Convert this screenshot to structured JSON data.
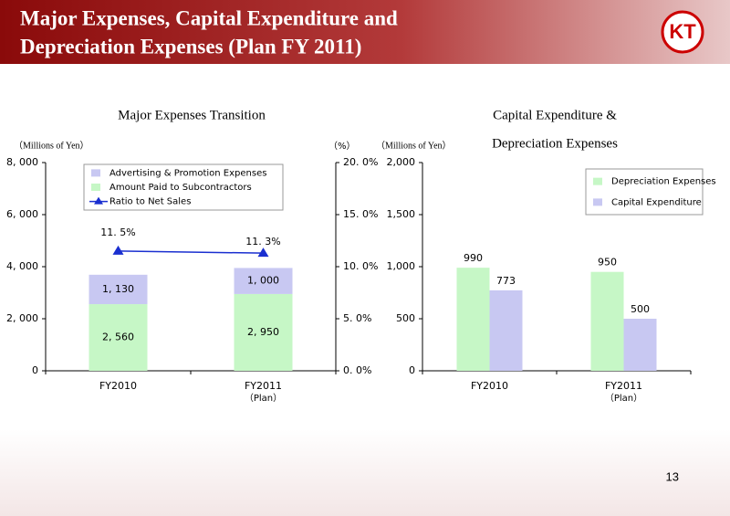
{
  "title": [
    "Major Expenses, Capital Expenditure and",
    "Depreciation Expenses (Plan FY 2011)"
  ],
  "logo": "KT",
  "page_number": "13",
  "chart_data": [
    {
      "type": "bar",
      "stacked": true,
      "title": [
        "Major Expenses Transition"
      ],
      "y_label": "（Millions of Yen）",
      "y2_label": "（%）",
      "categories": [
        "FY2010",
        "FY2011"
      ],
      "category_notes": [
        null,
        "（Plan）"
      ],
      "ylim": [
        0,
        8000
      ],
      "yticks": [
        0,
        {
          "value": 2000,
          "label": "2, 000"
        },
        {
          "value": 4000,
          "label": "4, 000"
        },
        {
          "value": 6000,
          "label": "6, 000"
        },
        {
          "value": 8000,
          "label": "8, 000"
        }
      ],
      "y2lim": [
        0,
        20
      ],
      "y2ticks": [
        {
          "value": 0,
          "label": "0. 0%"
        },
        {
          "value": 5,
          "label": "5. 0%"
        },
        {
          "value": 10,
          "label": "10. 0%"
        },
        {
          "value": 15,
          "label": "15. 0%"
        },
        {
          "value": 20,
          "label": "20. 0%"
        }
      ],
      "legend": "top-left",
      "series": [
        {
          "name": "Advertising & Promotion Expenses",
          "color": "#c8c8f2",
          "values": [
            1130,
            1000
          ],
          "value_labels": [
            "1, 130",
            "1, 000"
          ]
        },
        {
          "name": "Amount Paid to Subcontractors",
          "color": "#c6f7c6",
          "values": [
            2560,
            2950
          ],
          "value_labels": [
            "2, 560",
            "2, 950"
          ]
        },
        {
          "name": "Ratio to Net Sales",
          "color": "#1a2fd0",
          "axis": "y2",
          "values": [
            11.5,
            11.3
          ],
          "value_labels": [
            "11. 5%",
            "11. 3%"
          ]
        }
      ]
    },
    {
      "type": "bar",
      "stacked": false,
      "title": [
        "Capital Expenditure &",
        "Depreciation Expenses"
      ],
      "y_label": "（Millions of Yen）",
      "categories": [
        "FY2010",
        "FY2011"
      ],
      "category_notes": [
        null,
        "（Plan）"
      ],
      "ylim": [
        0,
        2000
      ],
      "yticks": [
        0,
        500,
        {
          "value": 1000,
          "label": "1,000"
        },
        {
          "value": 1500,
          "label": "1,500"
        },
        {
          "value": 2000,
          "label": "2,000"
        }
      ],
      "legend": "top-right",
      "series": [
        {
          "name": "Depreciation Expenses",
          "color": "#c6f7c6",
          "values": [
            990,
            950
          ]
        },
        {
          "name": "Capital Expenditure",
          "color": "#c8c8f2",
          "values": [
            773,
            500
          ]
        }
      ]
    }
  ]
}
